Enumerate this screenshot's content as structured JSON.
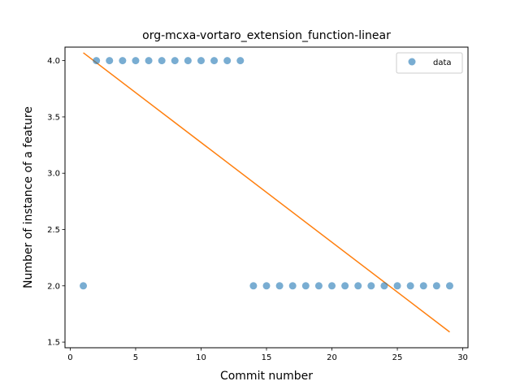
{
  "chart_data": {
    "type": "scatter",
    "title": "org-mcxa-vortaro_extension_function-linear",
    "xlabel": "Commit number",
    "ylabel": "Number of instance of a feature",
    "xlim": [
      -0.4,
      30.4
    ],
    "ylim": [
      1.45,
      4.12
    ],
    "xticks": [
      0,
      5,
      10,
      15,
      20,
      25,
      30
    ],
    "xtick_labels": [
      "0",
      "5",
      "10",
      "15",
      "20",
      "25",
      "30"
    ],
    "yticks": [
      1.5,
      2.0,
      2.5,
      3.0,
      3.5,
      4.0
    ],
    "ytick_labels": [
      "1.5",
      "2.0",
      "2.5",
      "3.0",
      "3.5",
      "4.0"
    ],
    "grid": false,
    "legend": {
      "position": "top-right",
      "entries": [
        "data"
      ]
    },
    "series": [
      {
        "name": "data",
        "kind": "scatter",
        "color": "#1f77b4",
        "x": [
          1,
          2,
          3,
          4,
          5,
          6,
          7,
          8,
          9,
          10,
          11,
          12,
          13,
          14,
          15,
          16,
          17,
          18,
          19,
          20,
          21,
          22,
          23,
          24,
          25,
          26,
          27,
          28,
          29
        ],
        "y": [
          2,
          4,
          4,
          4,
          4,
          4,
          4,
          4,
          4,
          4,
          4,
          4,
          4,
          2,
          2,
          2,
          2,
          2,
          2,
          2,
          2,
          2,
          2,
          2,
          2,
          2,
          2,
          2,
          2
        ]
      },
      {
        "kind": "line",
        "color": "#ff7f0e",
        "x": [
          1,
          29
        ],
        "y": [
          4.07,
          1.59
        ]
      }
    ]
  }
}
